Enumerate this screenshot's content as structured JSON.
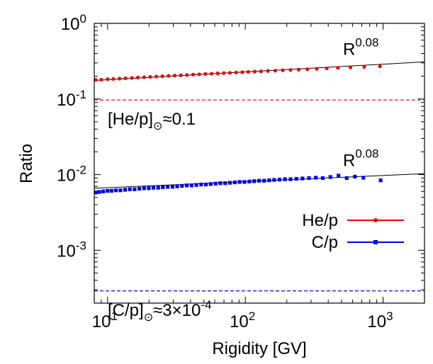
{
  "chart_data": {
    "type": "scatter",
    "xlabel": "Rigidity [GV]",
    "ylabel": "Ratio",
    "x_scale": "log",
    "y_scale": "log",
    "xlim": [
      8,
      2000
    ],
    "ylim": [
      0.0002,
      1
    ],
    "x_ticks": [
      {
        "value": 10,
        "base": "10",
        "exp": "1"
      },
      {
        "value": 100,
        "base": "10",
        "exp": "2"
      },
      {
        "value": 1000,
        "base": "10",
        "exp": "3"
      }
    ],
    "y_ticks": [
      {
        "value": 0.001,
        "base": "10",
        "exp": "-3"
      },
      {
        "value": 0.01,
        "base": "10",
        "exp": "-2"
      },
      {
        "value": 0.1,
        "base": "10",
        "exp": "-1"
      },
      {
        "value": 1,
        "base": "10",
        "exp": "0"
      }
    ],
    "legend": {
      "position": "right",
      "entries": [
        {
          "label": "He/p",
          "color": "#ee0000",
          "marker": "circle"
        },
        {
          "label": "C/p",
          "color": "#0000ee",
          "marker": "square"
        }
      ]
    },
    "series": [
      {
        "name": "He/p",
        "color": "#ee0000",
        "marker": "circle",
        "x": [
          8.2,
          9.0,
          10.0,
          11.0,
          12.2,
          13.5,
          15.0,
          16.6,
          18.4,
          20.4,
          22.6,
          25.0,
          27.7,
          30.7,
          34.0,
          37.7,
          41.8,
          46.3,
          51.3,
          56.9,
          63.0,
          69.8,
          77.4,
          85.8,
          95.0,
          105,
          117,
          130,
          146,
          165,
          187,
          213,
          244,
          282,
          330,
          390,
          470,
          580,
          730,
          950
        ],
        "y": [
          0.179,
          0.18,
          0.183,
          0.184,
          0.186,
          0.188,
          0.19,
          0.192,
          0.194,
          0.196,
          0.198,
          0.2,
          0.202,
          0.204,
          0.206,
          0.208,
          0.21,
          0.212,
          0.214,
          0.216,
          0.218,
          0.22,
          0.222,
          0.224,
          0.226,
          0.228,
          0.23,
          0.232,
          0.235,
          0.237,
          0.24,
          0.242,
          0.245,
          0.248,
          0.251,
          0.254,
          0.258,
          0.262,
          0.266,
          0.27
        ]
      },
      {
        "name": "C/p",
        "color": "#0000ee",
        "marker": "square",
        "x": [
          8.2,
          8.7,
          9.3,
          10.0,
          10.7,
          11.5,
          12.4,
          13.4,
          14.5,
          15.7,
          17.0,
          18.4,
          19.9,
          21.5,
          23.3,
          25.2,
          27.3,
          29.6,
          32.0,
          34.7,
          37.6,
          40.7,
          44.1,
          47.8,
          51.8,
          56.1,
          60.8,
          65.9,
          71.4,
          77.4,
          83.9,
          90.9,
          98.5,
          107,
          116,
          126,
          137,
          149,
          162,
          177,
          194,
          213,
          235,
          260,
          290,
          325,
          365,
          415,
          475,
          545,
          625,
          720,
          960
        ],
        "y": [
          0.0058,
          0.0059,
          0.006,
          0.0061,
          0.0061,
          0.0062,
          0.0062,
          0.0063,
          0.0064,
          0.0064,
          0.0065,
          0.0066,
          0.0066,
          0.0067,
          0.0067,
          0.0068,
          0.0069,
          0.0069,
          0.007,
          0.0071,
          0.0072,
          0.0072,
          0.0073,
          0.0074,
          0.0074,
          0.0075,
          0.0076,
          0.0077,
          0.0077,
          0.0078,
          0.0079,
          0.008,
          0.008,
          0.0081,
          0.0082,
          0.0083,
          0.0083,
          0.0084,
          0.0085,
          0.0086,
          0.0087,
          0.0087,
          0.0088,
          0.0089,
          0.009,
          0.0091,
          0.009,
          0.0093,
          0.0097,
          0.009,
          0.0094,
          0.0091,
          0.0084
        ]
      }
    ],
    "fits": [
      {
        "series": "He/p",
        "label_base": "R",
        "label_exp": "0.08",
        "from": [
          8,
          0.176
        ],
        "to": [
          2000,
          0.31
        ]
      },
      {
        "series": "C/p",
        "label_base": "R",
        "label_exp": "0.08",
        "from": [
          8,
          0.0066
        ],
        "to": [
          2000,
          0.0103
        ]
      }
    ],
    "reference_lines": [
      {
        "label_main": "[He/p]",
        "label_rest": "≈0.1",
        "y": 0.097,
        "color": "#ee0000"
      },
      {
        "label_main": "[C/p]",
        "label_rest": "≈3×10",
        "label_exp": "-4",
        "y": 0.00029,
        "color": "#0000ee"
      }
    ],
    "grid": false
  }
}
